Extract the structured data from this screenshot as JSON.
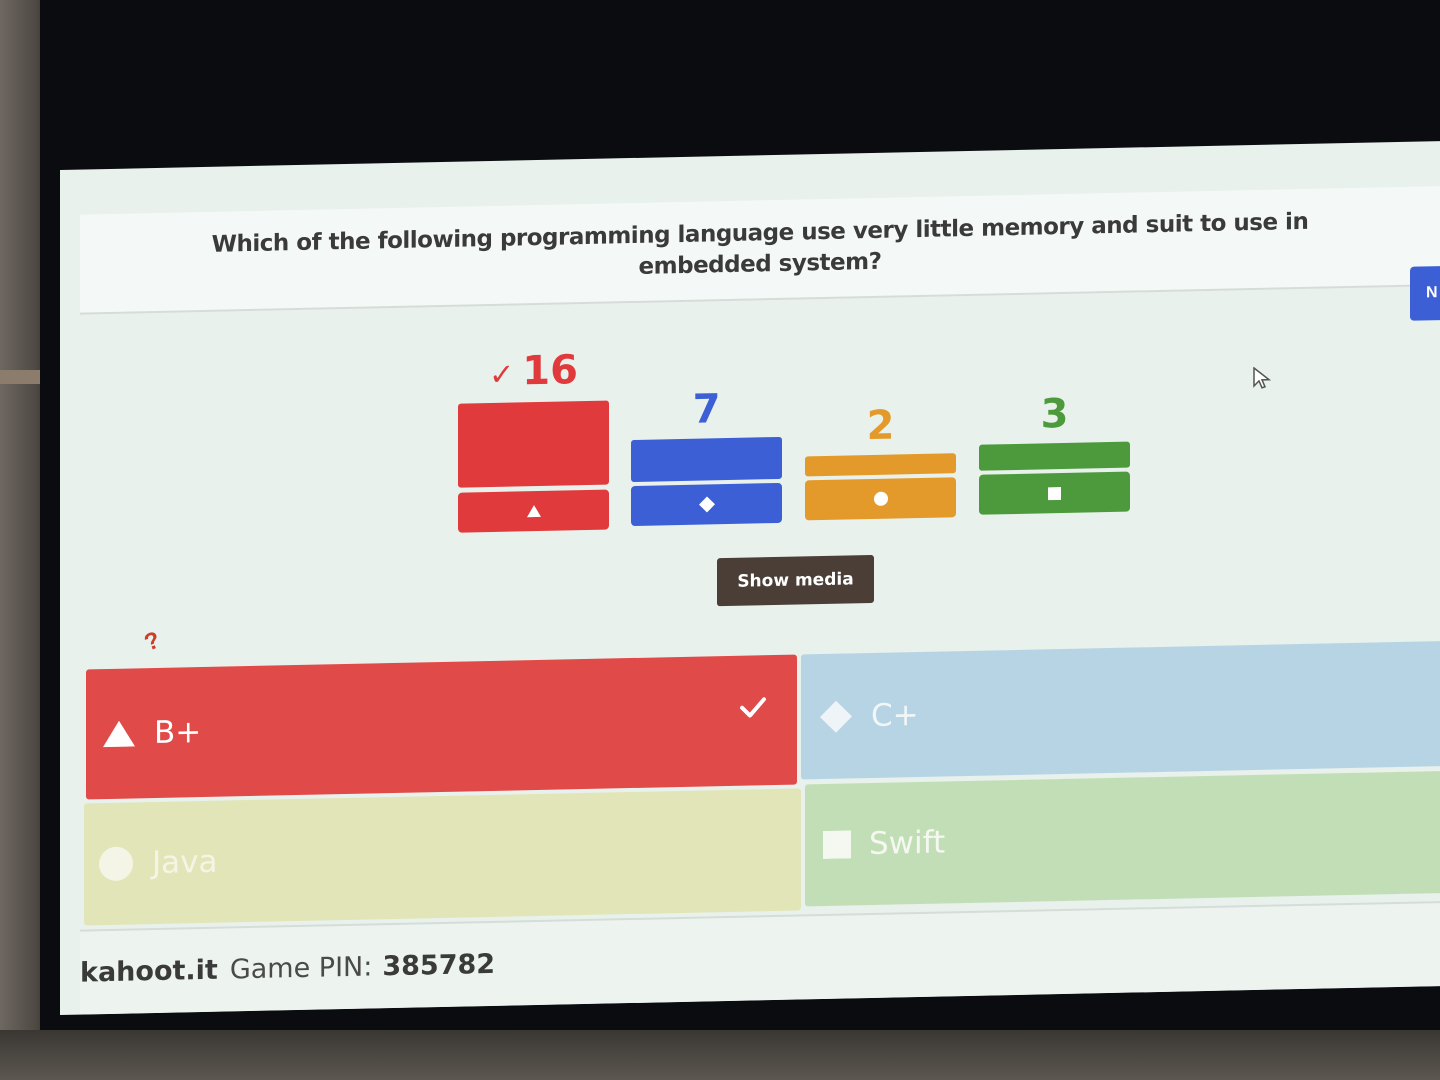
{
  "question": {
    "text": "Which of the following programming language use very little memory and suit to use in embedded system?"
  },
  "next_button": {
    "label": "N"
  },
  "results": [
    {
      "count": "16",
      "correct": true,
      "check": "✓",
      "shape": "triangle-icon",
      "color": "#e03a3c",
      "value": 16
    },
    {
      "count": "7",
      "correct": false,
      "shape": "diamond-icon",
      "color": "#3c5fd6",
      "value": 7
    },
    {
      "count": "2",
      "correct": false,
      "shape": "circle-icon",
      "color": "#e39a2a",
      "value": 2
    },
    {
      "count": "3",
      "correct": false,
      "shape": "square-icon",
      "color": "#4c9a3c",
      "value": 3
    }
  ],
  "show_media": {
    "label": "Show media"
  },
  "scribble": "?",
  "answers": [
    {
      "label": "B+",
      "shape": "triangle-icon",
      "correct": true,
      "color": "#e04a48",
      "text_color": "#ffffff"
    },
    {
      "label": "C+",
      "shape": "diamond-icon",
      "correct": false,
      "color": "#b7d4e4",
      "text_color": "#f2f6f8"
    },
    {
      "label": "Java",
      "shape": "circle-icon",
      "correct": false,
      "color": "#e2e5b8",
      "text_color": "#f4f5e6"
    },
    {
      "label": "Swift",
      "shape": "square-icon",
      "correct": false,
      "color": "#c2deb6",
      "text_color": "#f4f8f1"
    }
  ],
  "footer": {
    "site": "kahoot.it",
    "pin_label": "Game PIN:",
    "pin": "385782"
  }
}
